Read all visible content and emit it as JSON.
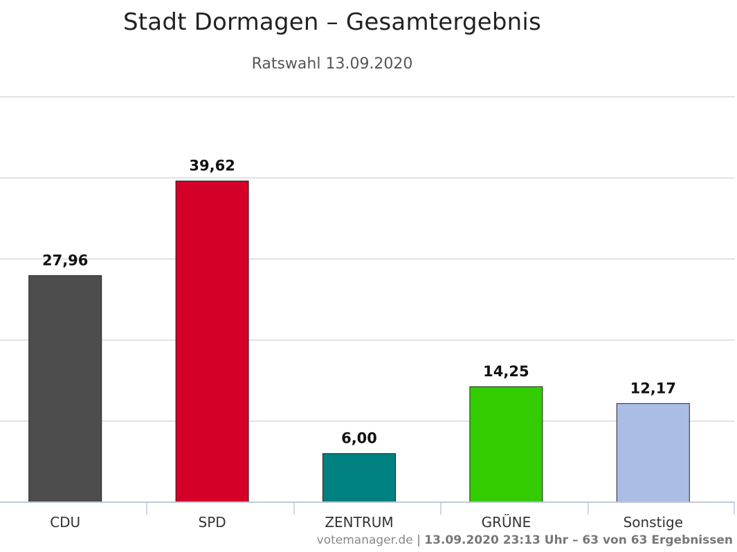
{
  "chart_data": {
    "type": "bar",
    "title": "Stadt Dormagen – Gesamtergebnis",
    "subtitle": "Ratswahl 13.09.2020",
    "categories": [
      "CDU",
      "SPD",
      "ZENTRUM",
      "GRÜNE",
      "Sonstige"
    ],
    "values": [
      27.96,
      39.62,
      6.0,
      14.25,
      12.17
    ],
    "value_labels": [
      "27,96",
      "39,62",
      "6,00",
      "14,25",
      "12,17"
    ],
    "colors": [
      "#4d4d4d",
      "#d40028",
      "#008080",
      "#33cc00",
      "#aabde5"
    ],
    "ylim": [
      0,
      50
    ],
    "ytick_step": 10,
    "grid": true,
    "xlabel": "",
    "ylabel": ""
  },
  "footer": {
    "site": "votemanager.de",
    "separator": " | ",
    "info": "13.09.2020 23:13 Uhr – 63 von 63 Ergebnissen"
  }
}
